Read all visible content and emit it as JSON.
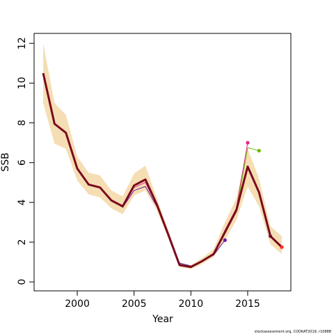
{
  "chart_data": {
    "type": "line",
    "x_label": "Year",
    "y_label": "SSB",
    "footnote": "stockassessment.org, CODKAT2019, r10888",
    "x": [
      1997,
      1998,
      1999,
      2000,
      2001,
      2002,
      2003,
      2004,
      2005,
      2006,
      2007,
      2008,
      2009,
      2010,
      2011,
      2012,
      2013,
      2014,
      2015,
      2016,
      2017,
      2018
    ],
    "band": {
      "color": "#f5deb3",
      "upper": [
        12,
        9,
        8.4,
        6.3,
        5.5,
        5.35,
        4.6,
        4.3,
        5.45,
        5.85,
        4.2,
        2.6,
        0.95,
        0.85,
        1.2,
        1.65,
        3.0,
        4.2,
        6.7,
        5.2,
        2.8,
        2.3
      ],
      "lower": [
        9,
        6.95,
        6.7,
        5.1,
        4.4,
        4.25,
        3.7,
        3.4,
        4.35,
        4.6,
        3.6,
        2.2,
        0.75,
        0.65,
        0.9,
        1.25,
        2.1,
        3.1,
        4.8,
        3.8,
        1.9,
        1.4
      ]
    },
    "series": [
      {
        "color": "#6a1b9a",
        "width": 1,
        "values": [
          10.5,
          7.95,
          7.5,
          5.7,
          4.9,
          4.75,
          4.1,
          3.75,
          4.6,
          4.8,
          3.8,
          2.4,
          0.95,
          0.8,
          1.05,
          1.35,
          2.1,
          null,
          null,
          null,
          null,
          null
        ]
      },
      {
        "color": "#e8248c",
        "width": 1,
        "values": [
          10.5,
          7.95,
          7.5,
          5.7,
          4.9,
          4.75,
          4.1,
          3.8,
          4.75,
          5.0,
          3.85,
          2.4,
          0.9,
          0.75,
          1.05,
          1.4,
          2.6,
          3.7,
          7.0,
          null,
          null,
          null
        ]
      },
      {
        "color": "#66bb00",
        "width": 1,
        "values": [
          10.5,
          7.95,
          7.5,
          5.7,
          4.9,
          4.75,
          4.1,
          3.8,
          4.85,
          5.15,
          3.9,
          2.4,
          0.85,
          0.75,
          1.05,
          1.4,
          2.5,
          3.6,
          6.75,
          6.6,
          null,
          null
        ]
      },
      {
        "color": "#5c2d91",
        "width": 1,
        "values": [
          10.5,
          7.95,
          7.5,
          5.7,
          4.9,
          4.75,
          4.1,
          3.8,
          4.85,
          5.15,
          3.9,
          2.4,
          0.85,
          0.75,
          1.05,
          1.4,
          2.5,
          3.6,
          5.8,
          4.5,
          2.3,
          null
        ]
      },
      {
        "color": "#7a0a1e",
        "width": 3,
        "end_color": "#ff2a2a",
        "values": [
          10.5,
          7.95,
          7.5,
          5.7,
          4.9,
          4.75,
          4.1,
          3.8,
          4.85,
          5.15,
          3.9,
          2.4,
          0.85,
          0.75,
          1.05,
          1.4,
          2.5,
          3.6,
          5.8,
          4.5,
          2.3,
          1.75
        ]
      }
    ],
    "xlim": [
      1996.2,
      2018.8
    ],
    "xticks": [
      2000,
      2005,
      2010,
      2015
    ],
    "ylim": [
      -0.45,
      12.5
    ],
    "yticks": [
      0,
      2,
      4,
      6,
      8,
      10,
      12
    ]
  }
}
